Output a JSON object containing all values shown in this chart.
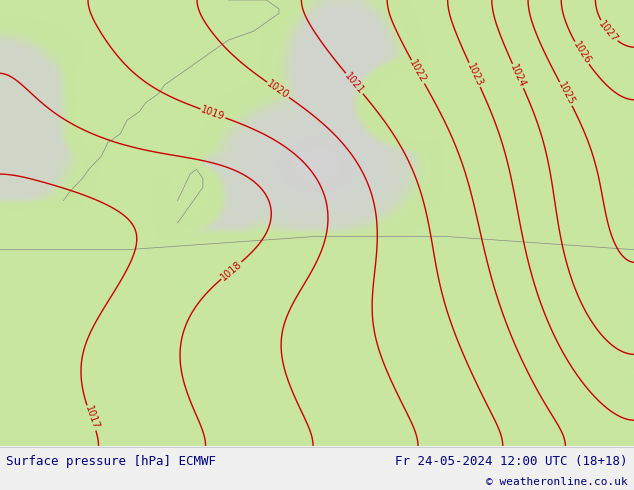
{
  "title_left": "Surface pressure [hPa] ECMWF",
  "title_right": "Fr 24-05-2024 12:00 UTC (18+18)",
  "copyright": "© weatheronline.co.uk",
  "land_color": "#c8e6a0",
  "sea_color": "#d8d8d8",
  "contour_color": "#cc0000",
  "contour_linewidth": 1.0,
  "label_fontsize": 7,
  "border_lw": 0.5,
  "border_color": "#aaaaaa",
  "bottom_bar_color": "#f0f0f0",
  "bottom_text_color": "#000080",
  "figsize": [
    6.34,
    4.9
  ],
  "dpi": 100
}
